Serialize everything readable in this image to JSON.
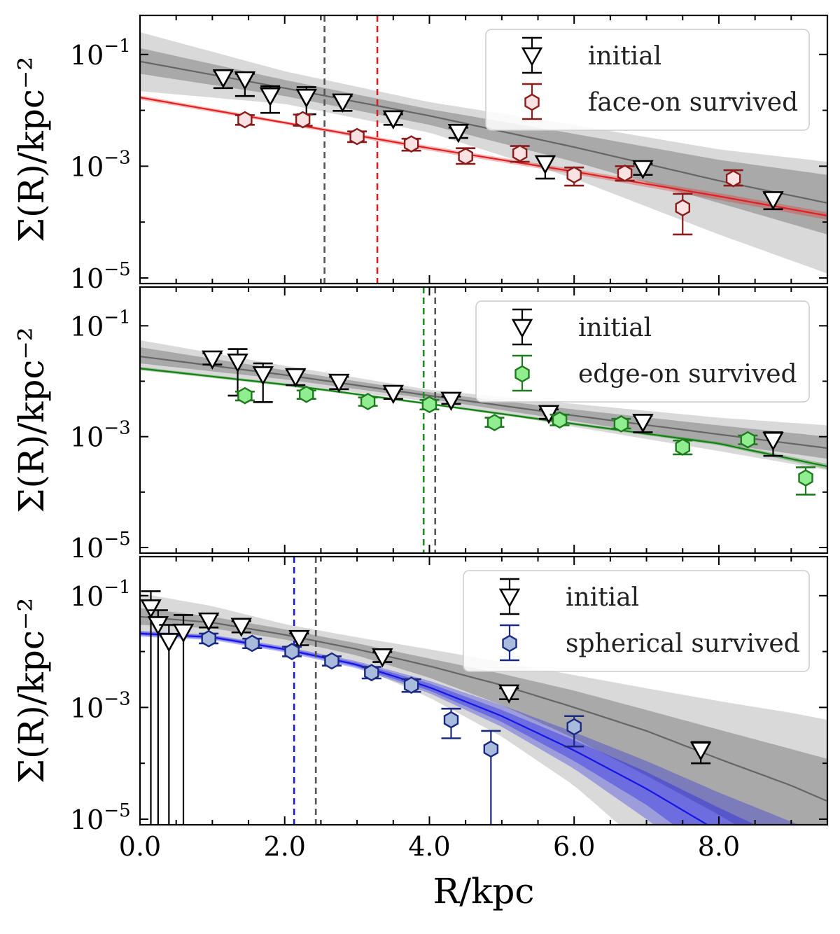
{
  "chart_data": {
    "type": "scatter",
    "xlabel": "R/kpc",
    "ylabel": "Σ(R)/kpc⁻²",
    "xlim": [
      0,
      9.5
    ],
    "ylim": [
      1e-05,
      0.5
    ],
    "y_scale": "log",
    "xticks": [
      0,
      2,
      4,
      6,
      8
    ],
    "xtick_labels": [
      "0.0",
      "2.0",
      "4.0",
      "6.0",
      "8.0"
    ],
    "ytick_labels": [
      {
        "base": "10",
        "exp": "−1",
        "value": 0.1
      },
      {
        "base": "10",
        "exp": "−3",
        "value": 0.001
      },
      {
        "base": "10",
        "exp": "−5",
        "value": 1e-05
      }
    ],
    "panels": [
      {
        "name": "face-on",
        "color": "#e21f1f",
        "marker_edge": "#8b1a1a",
        "marker_fill": "#fbe2e2",
        "legend": {
          "initial": "initial",
          "survived": "face-on survived"
        },
        "vlines": [
          {
            "x": 2.55,
            "color": "#555555"
          },
          {
            "x": 3.28,
            "color": "#d62020"
          }
        ],
        "initial_fit": [
          [
            0,
            0.075
          ],
          [
            2,
            0.025
          ],
          [
            4,
            0.008
          ],
          [
            6,
            0.0022
          ],
          [
            8,
            0.00055
          ],
          [
            9.5,
            0.00022
          ]
        ],
        "initial_band_inner": [
          [
            0,
            0.045,
            0.13
          ],
          [
            2,
            0.018,
            0.035
          ],
          [
            4,
            0.0055,
            0.0105
          ],
          [
            6,
            0.0012,
            0.0038
          ],
          [
            8,
            0.00022,
            0.0013
          ],
          [
            9.5,
            6e-05,
            0.0007
          ]
        ],
        "initial_band_outer": [
          [
            0,
            0.022,
            0.25
          ],
          [
            2,
            0.013,
            0.05
          ],
          [
            4,
            0.004,
            0.014
          ],
          [
            6,
            0.0006,
            0.0055
          ],
          [
            8,
            6e-05,
            0.002
          ],
          [
            9.5,
            1.2e-05,
            0.0012
          ]
        ],
        "survived_fit": [
          [
            0,
            0.017
          ],
          [
            2,
            0.006
          ],
          [
            4,
            0.0021
          ],
          [
            6,
            0.0008
          ],
          [
            8,
            0.00029
          ],
          [
            9.5,
            0.00013
          ]
        ],
        "survived_band": [
          [
            0,
            0.0155,
            0.0185
          ],
          [
            2,
            0.0056,
            0.0064
          ],
          [
            4,
            0.0019,
            0.0023
          ],
          [
            6,
            0.00072,
            0.00088
          ],
          [
            8,
            0.00025,
            0.00033
          ],
          [
            9.5,
            0.00011,
            0.00015
          ]
        ],
        "initial_points": [
          {
            "x": 1.15,
            "y": 0.038,
            "lo": 0.025,
            "hi": 0.05
          },
          {
            "x": 1.45,
            "y": 0.035,
            "lo": 0.018,
            "hi": 0.045
          },
          {
            "x": 1.8,
            "y": 0.018,
            "lo": 0.009,
            "hi": 0.027
          },
          {
            "x": 2.3,
            "y": 0.017,
            "lo": 0.0085,
            "hi": 0.026
          },
          {
            "x": 2.8,
            "y": 0.014,
            "lo": 0.0098,
            "hi": 0.018
          },
          {
            "x": 3.5,
            "y": 0.007,
            "lo": 0.0055,
            "hi": 0.0085
          },
          {
            "x": 4.4,
            "y": 0.004,
            "lo": 0.0032,
            "hi": 0.0049
          },
          {
            "x": 5.6,
            "y": 0.0011,
            "lo": 0.0006,
            "hi": 0.0015
          },
          {
            "x": 6.95,
            "y": 0.0009,
            "lo": 0.0007,
            "hi": 0.0011
          },
          {
            "x": 8.75,
            "y": 0.00025,
            "lo": 0.00017,
            "hi": 0.00033
          }
        ],
        "survived_points": [
          {
            "x": 1.45,
            "y": 0.0068,
            "lo": 0.0055,
            "hi": 0.0082
          },
          {
            "x": 2.25,
            "y": 0.0068,
            "lo": 0.0053,
            "hi": 0.0084
          },
          {
            "x": 3.0,
            "y": 0.0034,
            "lo": 0.0027,
            "hi": 0.0042
          },
          {
            "x": 3.75,
            "y": 0.0025,
            "lo": 0.0019,
            "hi": 0.0031
          },
          {
            "x": 4.5,
            "y": 0.0015,
            "lo": 0.0011,
            "hi": 0.0021
          },
          {
            "x": 5.25,
            "y": 0.0017,
            "lo": 0.0012,
            "hi": 0.0023
          },
          {
            "x": 6.0,
            "y": 0.0007,
            "lo": 0.00045,
            "hi": 0.00095
          },
          {
            "x": 6.7,
            "y": 0.00075,
            "lo": 0.00055,
            "hi": 0.001
          },
          {
            "x": 7.5,
            "y": 0.00018,
            "lo": 6e-05,
            "hi": 0.00032
          },
          {
            "x": 8.2,
            "y": 0.0006,
            "lo": 0.00045,
            "hi": 0.00085
          }
        ]
      },
      {
        "name": "edge-on",
        "color": "#128212",
        "marker_edge": "#1f7a1f",
        "marker_fill": "#90ee90",
        "legend": {
          "initial": "initial",
          "survived": "edge-on survived"
        },
        "vlines": [
          {
            "x": 3.92,
            "color": "#1e8e1e"
          },
          {
            "x": 4.08,
            "color": "#555555"
          }
        ],
        "initial_fit": [
          [
            0,
            0.028
          ],
          [
            2,
            0.013
          ],
          [
            4,
            0.0055
          ],
          [
            6,
            0.0024
          ],
          [
            8,
            0.0011
          ],
          [
            9.5,
            0.00062
          ]
        ],
        "initial_band_inner": [
          [
            0,
            0.021,
            0.041
          ],
          [
            2,
            0.0108,
            0.0158
          ],
          [
            4,
            0.0048,
            0.0063
          ],
          [
            6,
            0.0019,
            0.0031
          ],
          [
            8,
            0.00075,
            0.0016
          ],
          [
            9.5,
            0.0004,
            0.001
          ]
        ],
        "initial_band_outer": [
          [
            0,
            0.016,
            0.055
          ],
          [
            2,
            0.009,
            0.019
          ],
          [
            4,
            0.0043,
            0.007
          ],
          [
            6,
            0.0015,
            0.0039
          ],
          [
            8,
            0.00055,
            0.0022
          ],
          [
            9.5,
            0.00025,
            0.0016
          ]
        ],
        "survived_fit": [
          [
            0,
            0.017
          ],
          [
            2,
            0.0087
          ],
          [
            4,
            0.0039
          ],
          [
            6,
            0.0017
          ],
          [
            8,
            0.00075
          ],
          [
            9.5,
            0.00029
          ]
        ],
        "survived_band": [
          [
            0,
            0.0158,
            0.0182
          ],
          [
            2,
            0.0082,
            0.0092
          ],
          [
            4,
            0.0037,
            0.0041
          ],
          [
            6,
            0.0016,
            0.0018
          ],
          [
            8,
            0.0007,
            0.0008
          ],
          [
            9.5,
            0.00026,
            0.00032
          ]
        ],
        "initial_points": [
          {
            "x": 1.0,
            "y": 0.025,
            "lo": 0.02,
            "hi": 0.032
          },
          {
            "x": 1.35,
            "y": 0.022,
            "lo": 0.0055,
            "hi": 0.038
          },
          {
            "x": 1.7,
            "y": 0.013,
            "lo": 0.0042,
            "hi": 0.021
          },
          {
            "x": 2.15,
            "y": 0.012,
            "lo": 0.0085,
            "hi": 0.016
          },
          {
            "x": 2.75,
            "y": 0.0095,
            "lo": 0.0072,
            "hi": 0.012
          },
          {
            "x": 3.5,
            "y": 0.006,
            "lo": 0.0048,
            "hi": 0.0072
          },
          {
            "x": 4.3,
            "y": 0.0045,
            "lo": 0.0039,
            "hi": 0.0053
          },
          {
            "x": 5.65,
            "y": 0.0026,
            "lo": 0.0021,
            "hi": 0.0031
          },
          {
            "x": 6.95,
            "y": 0.0018,
            "lo": 0.0012,
            "hi": 0.0024
          },
          {
            "x": 8.75,
            "y": 0.00085,
            "lo": 0.00045,
            "hi": 0.0012
          }
        ],
        "survived_points": [
          {
            "x": 1.45,
            "y": 0.0055,
            "lo": 0.0045,
            "hi": 0.0065
          },
          {
            "x": 2.3,
            "y": 0.0058,
            "lo": 0.0048,
            "hi": 0.0068
          },
          {
            "x": 3.15,
            "y": 0.0043,
            "lo": 0.0036,
            "hi": 0.0051
          },
          {
            "x": 4.0,
            "y": 0.0038,
            "lo": 0.0031,
            "hi": 0.0046
          },
          {
            "x": 4.9,
            "y": 0.0018,
            "lo": 0.0015,
            "hi": 0.0022
          },
          {
            "x": 5.8,
            "y": 0.002,
            "lo": 0.0016,
            "hi": 0.0025
          },
          {
            "x": 6.65,
            "y": 0.0017,
            "lo": 0.0014,
            "hi": 0.0021
          },
          {
            "x": 7.5,
            "y": 0.00065,
            "lo": 0.00048,
            "hi": 0.00085
          },
          {
            "x": 8.4,
            "y": 0.00088,
            "lo": 0.00073,
            "hi": 0.00105
          },
          {
            "x": 9.2,
            "y": 0.00018,
            "lo": 9e-05,
            "hi": 0.00028
          }
        ]
      },
      {
        "name": "spherical",
        "color": "#1515e6",
        "marker_edge": "#1a2a80",
        "marker_fill": "#a8bbdd",
        "legend": {
          "initial": "initial",
          "survived": "spherical survived"
        },
        "vlines": [
          {
            "x": 2.13,
            "color": "#1a1ae0"
          },
          {
            "x": 2.43,
            "color": "#555555"
          }
        ],
        "initial_fit": [
          [
            0,
            0.042
          ],
          [
            1,
            0.033
          ],
          [
            2,
            0.02
          ],
          [
            3,
            0.011
          ],
          [
            4,
            0.0055
          ],
          [
            5,
            0.0025
          ],
          [
            6,
            0.001
          ],
          [
            7,
            0.00038
          ],
          [
            8,
            0.00012
          ],
          [
            9,
            4e-05
          ],
          [
            9.5,
            2.1e-05
          ]
        ],
        "initial_band_inner": [
          [
            0,
            0.03,
            0.06
          ],
          [
            1,
            0.026,
            0.042
          ],
          [
            2,
            0.0165,
            0.025
          ],
          [
            3,
            0.0085,
            0.014
          ],
          [
            4,
            0.0034,
            0.0075
          ],
          [
            5,
            0.0011,
            0.004
          ],
          [
            6,
            0.00028,
            0.002
          ],
          [
            7,
            6e-05,
            0.0009
          ],
          [
            8,
            1.2e-05,
            0.0004
          ],
          [
            9,
            2e-06,
            0.00018
          ],
          [
            9.5,
            1e-06,
            0.00012
          ]
        ],
        "initial_band_outer": [
          [
            0,
            0.02,
            0.11
          ],
          [
            1,
            0.018,
            0.065
          ],
          [
            2,
            0.012,
            0.031
          ],
          [
            3,
            0.0055,
            0.018
          ],
          [
            4,
            0.0015,
            0.011
          ],
          [
            5,
            0.0003,
            0.0065
          ],
          [
            6,
            4e-05,
            0.0038
          ],
          [
            7,
            3e-06,
            0.0022
          ],
          [
            8,
            2e-07,
            0.0013
          ],
          [
            9,
            1e-07,
            0.0008
          ],
          [
            9.5,
            1e-07,
            0.0006
          ]
        ],
        "survived_fit": [
          [
            0,
            0.021
          ],
          [
            1,
            0.018
          ],
          [
            2,
            0.011
          ],
          [
            3,
            0.0058
          ],
          [
            4,
            0.0023
          ],
          [
            5,
            0.0007
          ],
          [
            6,
            0.00017
          ],
          [
            7,
            3.5e-05
          ],
          [
            8,
            6e-06
          ],
          [
            9,
            8e-07
          ],
          [
            9.5,
            3e-07
          ]
        ],
        "survived_band_inner": [
          [
            0,
            0.0195,
            0.0225
          ],
          [
            1,
            0.0168,
            0.0192
          ],
          [
            2,
            0.0102,
            0.0118
          ],
          [
            3,
            0.0053,
            0.0063
          ],
          [
            4,
            0.002,
            0.0027
          ],
          [
            5,
            0.00055,
            0.0009
          ],
          [
            6,
            0.00011,
            0.00026
          ],
          [
            7,
            1.8e-05,
            7e-05
          ],
          [
            8,
            2e-06,
            1.6e-05
          ],
          [
            9,
            2e-07,
            4e-06
          ],
          [
            9.5,
            1e-07,
            2e-06
          ]
        ],
        "survived_band_outer": [
          [
            0,
            0.0185,
            0.0235
          ],
          [
            1,
            0.016,
            0.02
          ],
          [
            2,
            0.0097,
            0.0123
          ],
          [
            3,
            0.005,
            0.0067
          ],
          [
            4,
            0.0018,
            0.003
          ],
          [
            5,
            0.00045,
            0.0011
          ],
          [
            6,
            8e-05,
            0.00036
          ],
          [
            7,
            1e-05,
            0.00011
          ],
          [
            8,
            1e-06,
            3e-05
          ],
          [
            9,
            1e-07,
            9e-06
          ],
          [
            9.5,
            1e-07,
            5e-06
          ]
        ],
        "initial_points": [
          {
            "x": 0.15,
            "y": 0.06,
            "lo": 1e-07,
            "hi": 0.12
          },
          {
            "x": 0.25,
            "y": 0.03,
            "lo": 1e-07,
            "hi": 0.055
          },
          {
            "x": 0.4,
            "y": 0.015,
            "lo": 1e-07,
            "hi": 0.03
          },
          {
            "x": 0.6,
            "y": 0.022,
            "lo": 1e-07,
            "hi": 0.045
          },
          {
            "x": 0.95,
            "y": 0.035,
            "lo": 0.027,
            "hi": 0.045
          },
          {
            "x": 1.4,
            "y": 0.028,
            "lo": 0.022,
            "hi": 0.035
          },
          {
            "x": 2.2,
            "y": 0.017,
            "lo": 0.013,
            "hi": 0.021
          },
          {
            "x": 3.35,
            "y": 0.008,
            "lo": 0.0065,
            "hi": 0.0098
          },
          {
            "x": 5.1,
            "y": 0.0018,
            "lo": 0.0014,
            "hi": 0.0022
          },
          {
            "x": 7.75,
            "y": 0.00017,
            "lo": 0.0001,
            "hi": 0.00024
          }
        ],
        "survived_points": [
          {
            "x": 0.95,
            "y": 0.017,
            "lo": 0.014,
            "hi": 0.021
          },
          {
            "x": 1.55,
            "y": 0.014,
            "lo": 0.0115,
            "hi": 0.017
          },
          {
            "x": 2.1,
            "y": 0.01,
            "lo": 0.0082,
            "hi": 0.0122
          },
          {
            "x": 2.65,
            "y": 0.0068,
            "lo": 0.0056,
            "hi": 0.0082
          },
          {
            "x": 3.2,
            "y": 0.0042,
            "lo": 0.0033,
            "hi": 0.0053
          },
          {
            "x": 3.75,
            "y": 0.0025,
            "lo": 0.0019,
            "hi": 0.0032
          },
          {
            "x": 4.3,
            "y": 0.0006,
            "lo": 0.00028,
            "hi": 0.00095
          },
          {
            "x": 4.85,
            "y": 0.00018,
            "lo": 1e-07,
            "hi": 0.00038
          },
          {
            "x": 6.0,
            "y": 0.00045,
            "lo": 0.0002,
            "hi": 0.0007
          }
        ]
      }
    ]
  }
}
